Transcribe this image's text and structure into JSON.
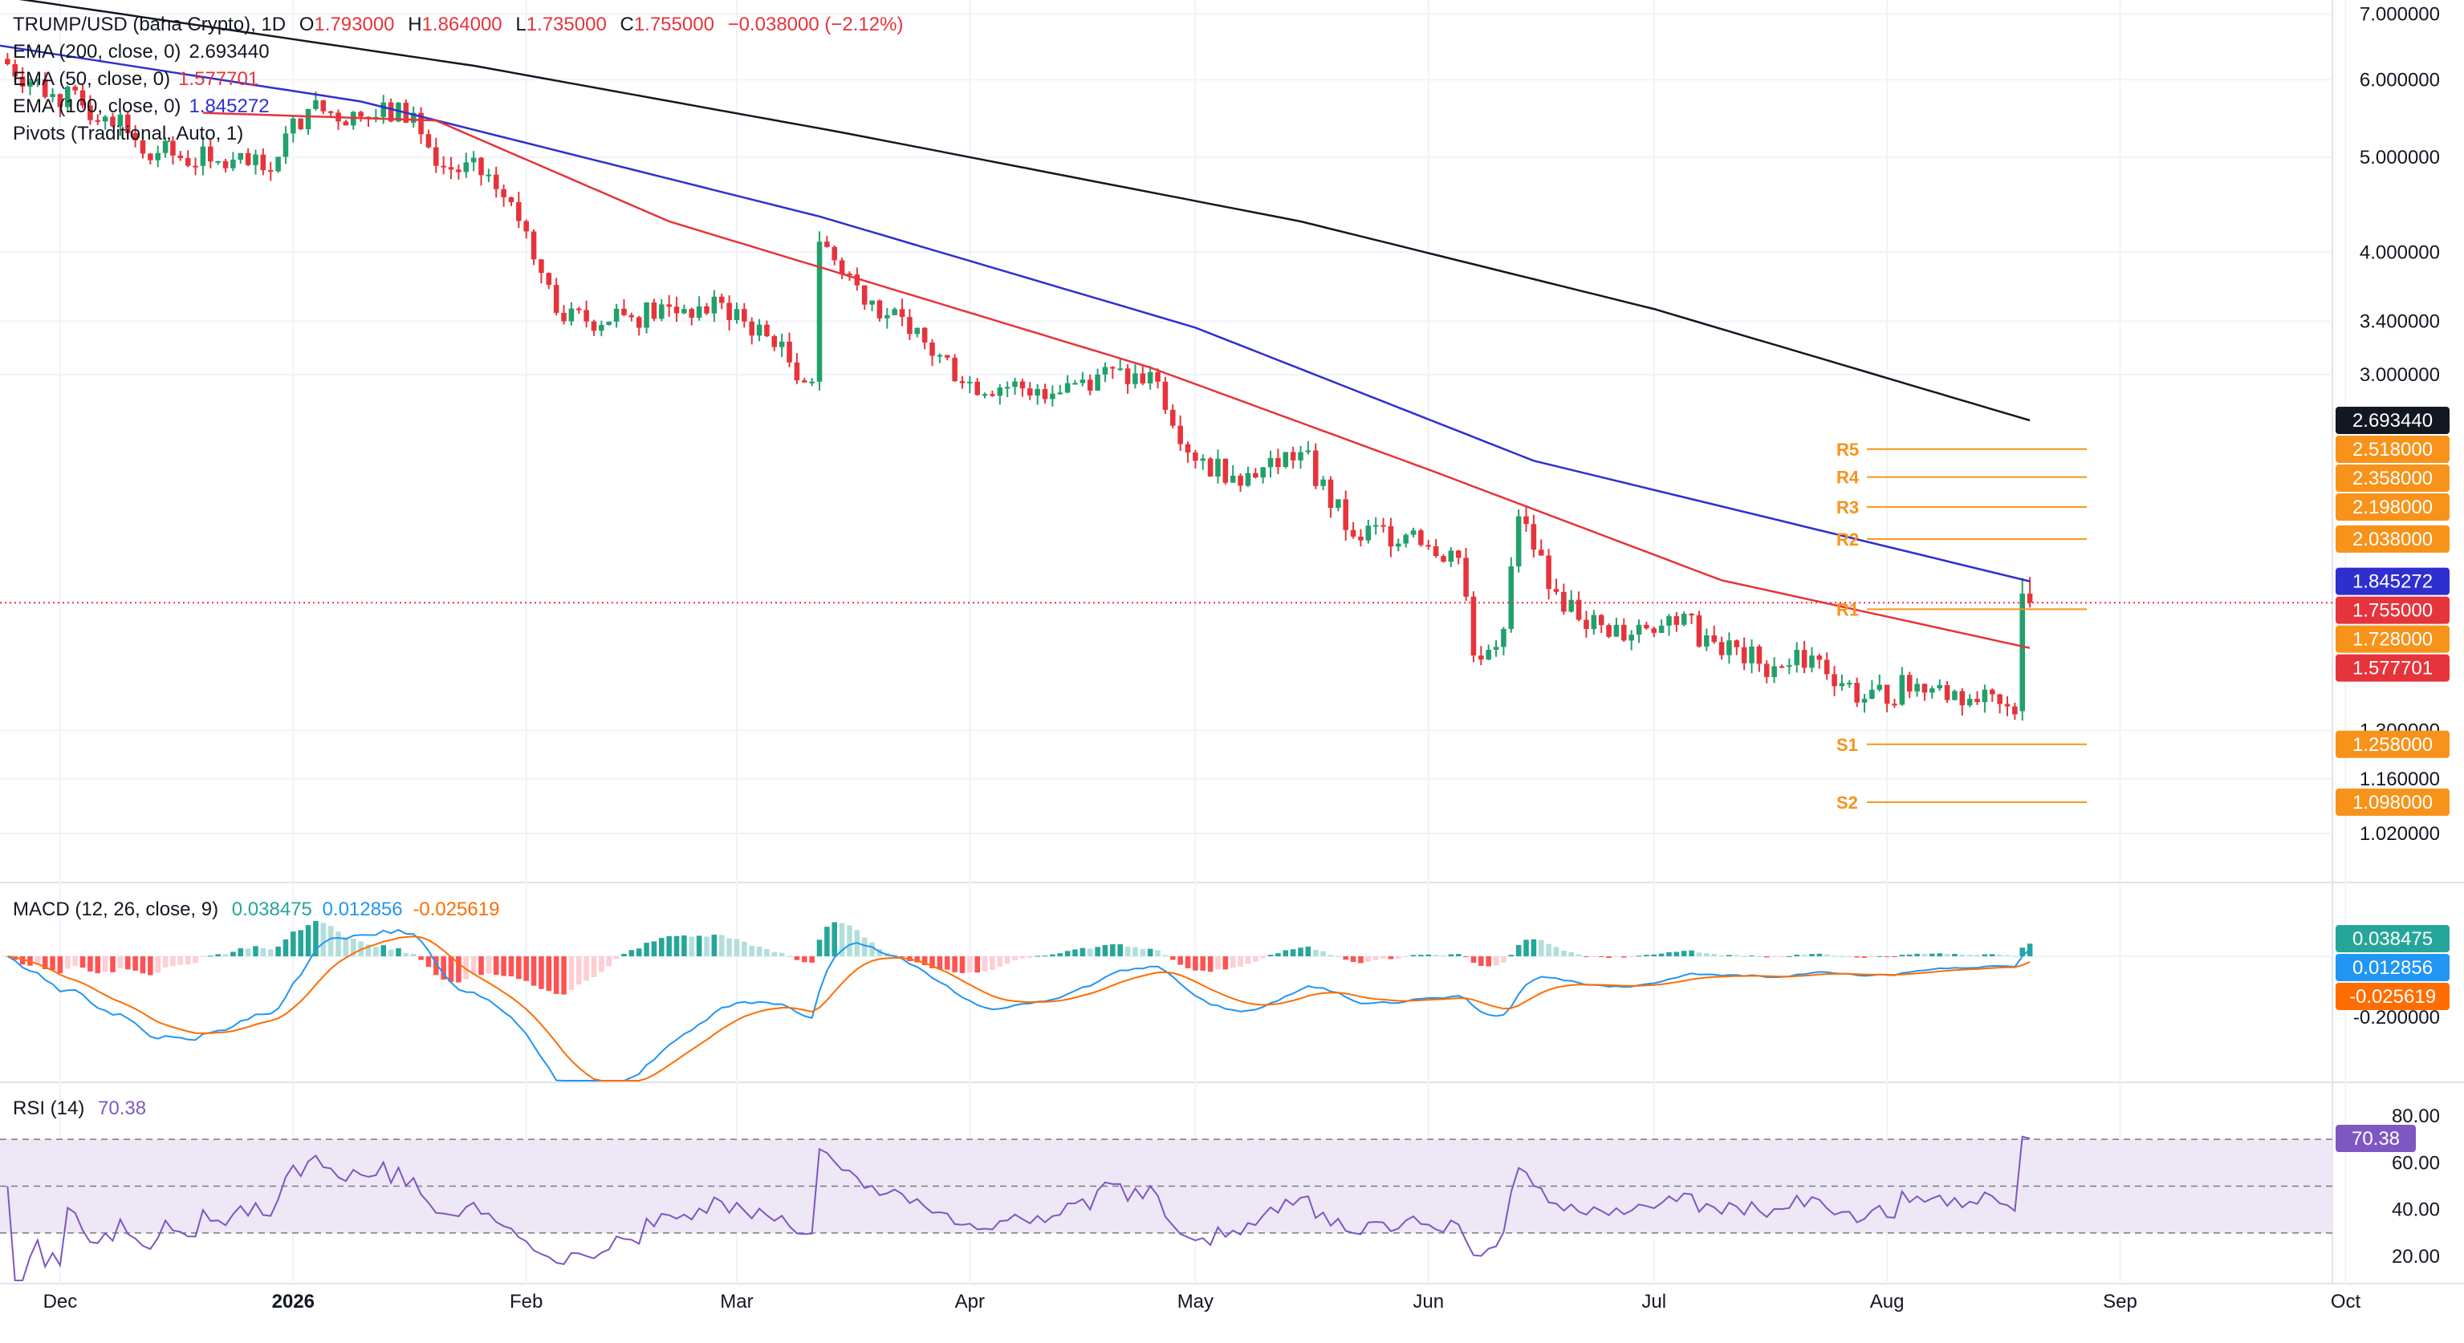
{
  "symbol_header": {
    "title": "TRUMP/USD (baha Crypto), 1D",
    "open_label": "O",
    "open": "1.793000",
    "high_label": "H",
    "high": "1.864000",
    "low_label": "L",
    "low": "1.735000",
    "close_label": "C",
    "close": "1.755000",
    "change": "−0.038000 (−2.12%)"
  },
  "indicators": [
    {
      "label": "EMA (200, close, 0)",
      "value": "2.693440",
      "color": "#131722"
    },
    {
      "label": "EMA (50, close, 0)",
      "value": "1.577701",
      "color": "#e6343c"
    },
    {
      "label": "EMA (100, close, 0)",
      "value": "1.845272",
      "color": "#2f2fd0"
    },
    {
      "label": "Pivots (Traditional, Auto, 1)",
      "value": "",
      "color": "#131722"
    }
  ],
  "colors": {
    "up": "#22a06b",
    "down": "#e6343c",
    "ema200": "#131722",
    "ema50": "#e6343c",
    "ema100": "#2f2fd0",
    "pivot": "#f7931a",
    "macd": "#2196f3",
    "signal": "#ff6d00",
    "rsi": "#7e57c2",
    "rsi_band": "#ede7f6"
  },
  "price_axis": {
    "ticks": [
      "7.000000",
      "6.000000",
      "5.000000",
      "4.000000",
      "3.400000",
      "3.000000",
      "1.300000",
      "1.160000",
      "1.020000"
    ]
  },
  "price_tags": [
    {
      "label": "2.693440",
      "value": 2.69344,
      "bg": "#131722",
      "fg": "#ffffff"
    },
    {
      "label": "2.518000",
      "value": 2.518,
      "bg": "#f7931a",
      "fg": "#ffffff"
    },
    {
      "label": "2.358000",
      "value": 2.358,
      "bg": "#f7931a",
      "fg": "#ffffff"
    },
    {
      "label": "2.198000",
      "value": 2.198,
      "bg": "#f7931a",
      "fg": "#ffffff"
    },
    {
      "label": "2.038000",
      "value": 2.038,
      "bg": "#f7931a",
      "fg": "#ffffff"
    },
    {
      "label": "1.845272",
      "value": 1.845272,
      "bg": "#2f2fd0",
      "fg": "#ffffff"
    },
    {
      "label": "1.755000",
      "value": 1.755,
      "bg": "#e6343c",
      "fg": "#ffffff"
    },
    {
      "label": "1.728000",
      "value": 1.728,
      "bg": "#f7931a",
      "fg": "#ffffff"
    },
    {
      "label": "1.577701",
      "value": 1.577701,
      "bg": "#e6343c",
      "fg": "#ffffff"
    },
    {
      "label": "1.258000",
      "value": 1.258,
      "bg": "#f7931a",
      "fg": "#ffffff"
    },
    {
      "label": "1.098000",
      "value": 1.098,
      "bg": "#f7931a",
      "fg": "#ffffff"
    }
  ],
  "pivots": [
    {
      "label": "R5",
      "value": 2.518
    },
    {
      "label": "R4",
      "value": 2.358
    },
    {
      "label": "R3",
      "value": 2.198
    },
    {
      "label": "R2",
      "value": 2.038
    },
    {
      "label": "R1",
      "value": 1.728
    },
    {
      "label": "S1",
      "value": 1.258
    },
    {
      "label": "S2",
      "value": 1.098
    }
  ],
  "macd_header": {
    "label": "MACD (12, 26, close, 9)",
    "hist": "0.038475",
    "macd": "0.012856",
    "signal": "-0.025619"
  },
  "macd_tags": [
    {
      "label": "0.038475",
      "value": 0.038475,
      "bg": "#26a69a"
    },
    {
      "label": "0.012856",
      "value": 0.012856,
      "bg": "#2196f3"
    },
    {
      "label": "-0.025619",
      "value": -0.025619,
      "bg": "#ff6d00"
    }
  ],
  "macd_axis": {
    "ticks": [
      "-0.200000"
    ]
  },
  "rsi_header": {
    "label": "RSI (14)",
    "value": "70.38"
  },
  "rsi_axis": {
    "ticks": [
      "80.00",
      "60.00",
      "40.00",
      "20.00"
    ]
  },
  "rsi_tag": {
    "label": "70.38",
    "value": 70.38
  },
  "time_axis": {
    "labels": [
      "Dec",
      "2026",
      "Feb",
      "Mar",
      "Apr",
      "May",
      "Jun",
      "Jul",
      "Aug",
      "Sep",
      "Oct"
    ]
  },
  "chart_data": {
    "type": "candlestick",
    "title": "TRUMP/USD (baha Crypto), 1D",
    "y_scale": "log",
    "ylim": [
      0.93,
      7.1
    ],
    "x_range": [
      "2025-11-23",
      "2026-10-05"
    ],
    "ohlc_anchors": [
      {
        "date": "2025-11-23",
        "close": 6.3
      },
      {
        "date": "2025-11-30",
        "close": 5.8
      },
      {
        "date": "2025-12-07",
        "close": 5.5
      },
      {
        "date": "2025-12-14",
        "close": 5.05
      },
      {
        "date": "2025-12-21",
        "close": 4.95
      },
      {
        "date": "2025-12-28",
        "close": 4.85
      },
      {
        "date": "2026-01-03",
        "close": 5.6
      },
      {
        "date": "2026-01-10",
        "close": 5.5
      },
      {
        "date": "2026-01-17",
        "close": 5.55
      },
      {
        "date": "2026-01-20",
        "close": 4.9
      },
      {
        "date": "2026-01-27",
        "close": 4.8
      },
      {
        "date": "2026-02-01",
        "close": 4.2
      },
      {
        "date": "2026-02-06",
        "close": 3.4
      },
      {
        "date": "2026-02-14",
        "close": 3.45
      },
      {
        "date": "2026-02-22",
        "close": 3.5
      },
      {
        "date": "2026-03-01",
        "close": 3.5
      },
      {
        "date": "2026-03-06",
        "close": 3.2
      },
      {
        "date": "2026-03-11",
        "close": 2.95
      },
      {
        "date": "2026-03-12",
        "close": 4.1
      },
      {
        "date": "2026-03-17",
        "close": 3.7
      },
      {
        "date": "2026-03-24",
        "close": 3.3
      },
      {
        "date": "2026-04-01",
        "close": 2.95
      },
      {
        "date": "2026-04-10",
        "close": 2.9
      },
      {
        "date": "2026-04-18",
        "close": 3.0
      },
      {
        "date": "2026-04-26",
        "close": 2.95
      },
      {
        "date": "2026-05-01",
        "close": 2.45
      },
      {
        "date": "2026-05-08",
        "close": 2.38
      },
      {
        "date": "2026-05-15",
        "close": 2.5
      },
      {
        "date": "2026-05-22",
        "close": 2.05
      },
      {
        "date": "2026-05-30",
        "close": 2.08
      },
      {
        "date": "2026-06-05",
        "close": 1.95
      },
      {
        "date": "2026-06-07",
        "close": 1.55
      },
      {
        "date": "2026-06-11",
        "close": 1.65
      },
      {
        "date": "2026-06-13",
        "close": 2.15
      },
      {
        "date": "2026-06-18",
        "close": 1.8
      },
      {
        "date": "2026-06-25",
        "close": 1.62
      },
      {
        "date": "2026-07-03",
        "close": 1.7
      },
      {
        "date": "2026-07-09",
        "close": 1.6
      },
      {
        "date": "2026-07-15",
        "close": 1.52
      },
      {
        "date": "2026-07-22",
        "close": 1.55
      },
      {
        "date": "2026-07-29",
        "close": 1.4
      },
      {
        "date": "2026-08-05",
        "close": 1.45
      },
      {
        "date": "2026-08-12",
        "close": 1.4
      },
      {
        "date": "2026-08-18",
        "close": 1.35
      },
      {
        "date": "2026-08-19",
        "close": 1.793
      },
      {
        "date": "2026-08-20",
        "close": 1.755
      }
    ],
    "series": [
      {
        "name": "EMA (200, close, 0)",
        "points": [
          {
            "date": "2025-11-23",
            "value": 7.3
          },
          {
            "date": "2026-01-25",
            "value": 6.2
          },
          {
            "date": "2026-03-15",
            "value": 5.3
          },
          {
            "date": "2026-05-15",
            "value": 4.3
          },
          {
            "date": "2026-07-01",
            "value": 3.5
          },
          {
            "date": "2026-08-20",
            "value": 2.69344
          }
        ]
      },
      {
        "name": "EMA (100, close, 0)",
        "points": [
          {
            "date": "2025-11-23",
            "value": 6.5
          },
          {
            "date": "2026-01-10",
            "value": 5.7
          },
          {
            "date": "2026-03-12",
            "value": 4.35
          },
          {
            "date": "2026-05-01",
            "value": 3.35
          },
          {
            "date": "2026-06-15",
            "value": 2.45
          },
          {
            "date": "2026-08-20",
            "value": 1.845272
          }
        ]
      },
      {
        "name": "EMA (50, close, 0)",
        "points": [
          {
            "date": "2025-12-20",
            "value": 5.55
          },
          {
            "date": "2026-01-20",
            "value": 5.45
          },
          {
            "date": "2026-02-20",
            "value": 4.3
          },
          {
            "date": "2026-03-20",
            "value": 3.7
          },
          {
            "date": "2026-04-25",
            "value": 3.05
          },
          {
            "date": "2026-06-01",
            "value": 2.4
          },
          {
            "date": "2026-07-10",
            "value": 1.85
          },
          {
            "date": "2026-08-20",
            "value": 1.577701
          }
        ]
      }
    ],
    "macd": {
      "histogram_last": 0.038475,
      "macd_last": 0.012856,
      "signal_last": -0.025619
    },
    "rsi": {
      "period": 14,
      "last": 70.38,
      "levels": [
        70,
        50,
        30
      ]
    }
  }
}
